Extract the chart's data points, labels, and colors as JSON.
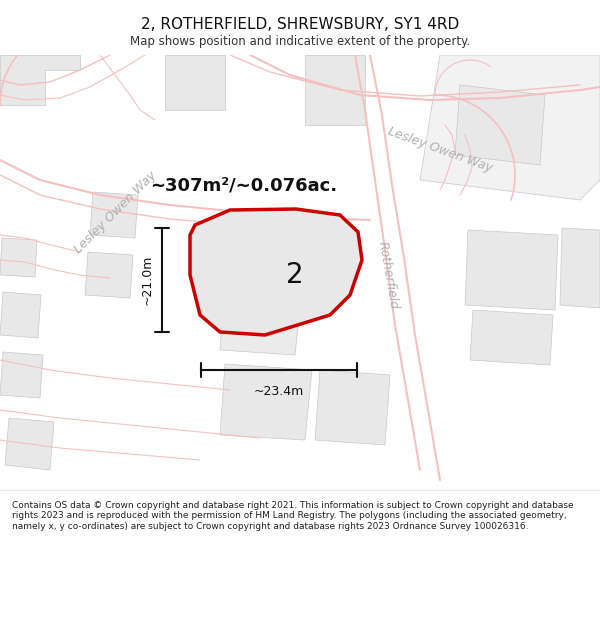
{
  "title": "2, ROTHERFIELD, SHREWSBURY, SY1 4RD",
  "subtitle": "Map shows position and indicative extent of the property.",
  "area_text": "~307m²/~0.076ac.",
  "width_text": "~23.4m",
  "height_text": "~21.0m",
  "number_label": "2",
  "road_label_top": "Lesley Owen Way",
  "road_label_left": "Lesley Owen Way",
  "road_label_right": "Rotherfield",
  "footer_text": "Contains OS data © Crown copyright and database right 2021. This information is subject to Crown copyright and database rights 2023 and is reproduced with the permission of HM Land Registry. The polygons (including the associated geometry, namely x, y co-ordinates) are subject to Crown copyright and database rights 2023 Ordnance Survey 100026316.",
  "bg_color": "#ffffff",
  "map_bg": "#ffffff",
  "block_color_light": "#e8e8e8",
  "block_color_mid": "#d8d8d8",
  "road_line_color": "#f5c0c0",
  "road_fill_color": "#ffffff",
  "property_fill": "#e8e8e8",
  "property_outline": "#cc0000",
  "road_text_color": "#b0b0b0",
  "annotation_color": "#000000",
  "figwidth": 6.0,
  "figheight": 6.25,
  "dpi": 100
}
